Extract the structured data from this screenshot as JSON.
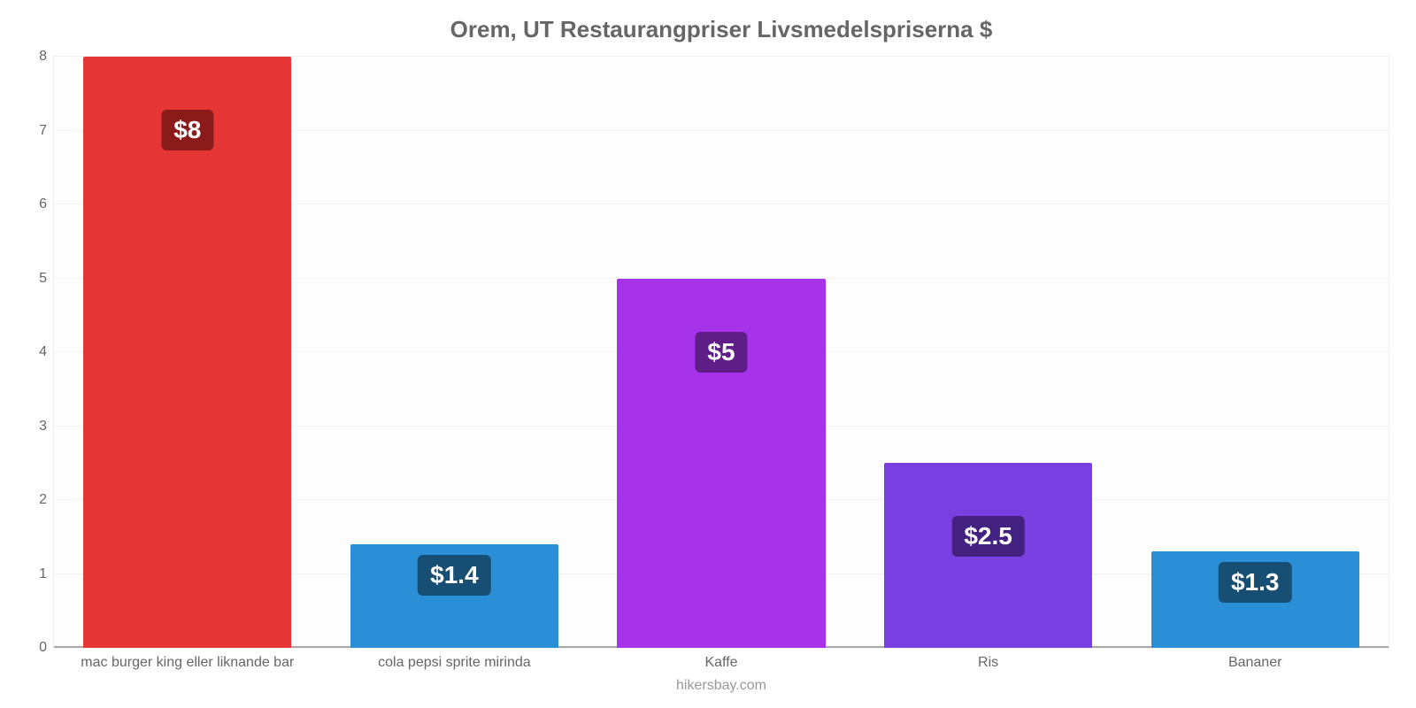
{
  "chart": {
    "type": "bar",
    "title": "Orem, UT Restaurangpriser Livsmedelspriserna $",
    "title_fontsize": 26,
    "title_color": "#666666",
    "credit": "hikersbay.com",
    "credit_color": "#999999",
    "background_color": "#ffffff",
    "plot_background": "#fdfdfd",
    "grid_color": "#f2f2f2",
    "axis_color": "#aaaaaa",
    "label_color": "#666666",
    "label_fontsize": 16,
    "value_label_fontsize": 28,
    "value_label_text_color": "#ffffff",
    "y": {
      "min": 0,
      "max": 8,
      "step": 1
    },
    "bar_width_ratio": 0.78,
    "categories": [
      "mac burger king eller liknande bar",
      "cola pepsi sprite mirinda",
      "Kaffe",
      "Ris",
      "Bananer"
    ],
    "values": [
      8,
      1.4,
      5,
      2.5,
      1.3
    ],
    "display_values": [
      "$8",
      "$1.4",
      "$5",
      "$2.5",
      "$1.3"
    ],
    "bar_colors": [
      "#e63535",
      "#2a8fd6",
      "#a633ea",
      "#7a3fe0",
      "#2a8fd6"
    ],
    "label_bg_colors": [
      "#8b1b1b",
      "#174e73",
      "#5e1d87",
      "#432180",
      "#174e73"
    ]
  }
}
